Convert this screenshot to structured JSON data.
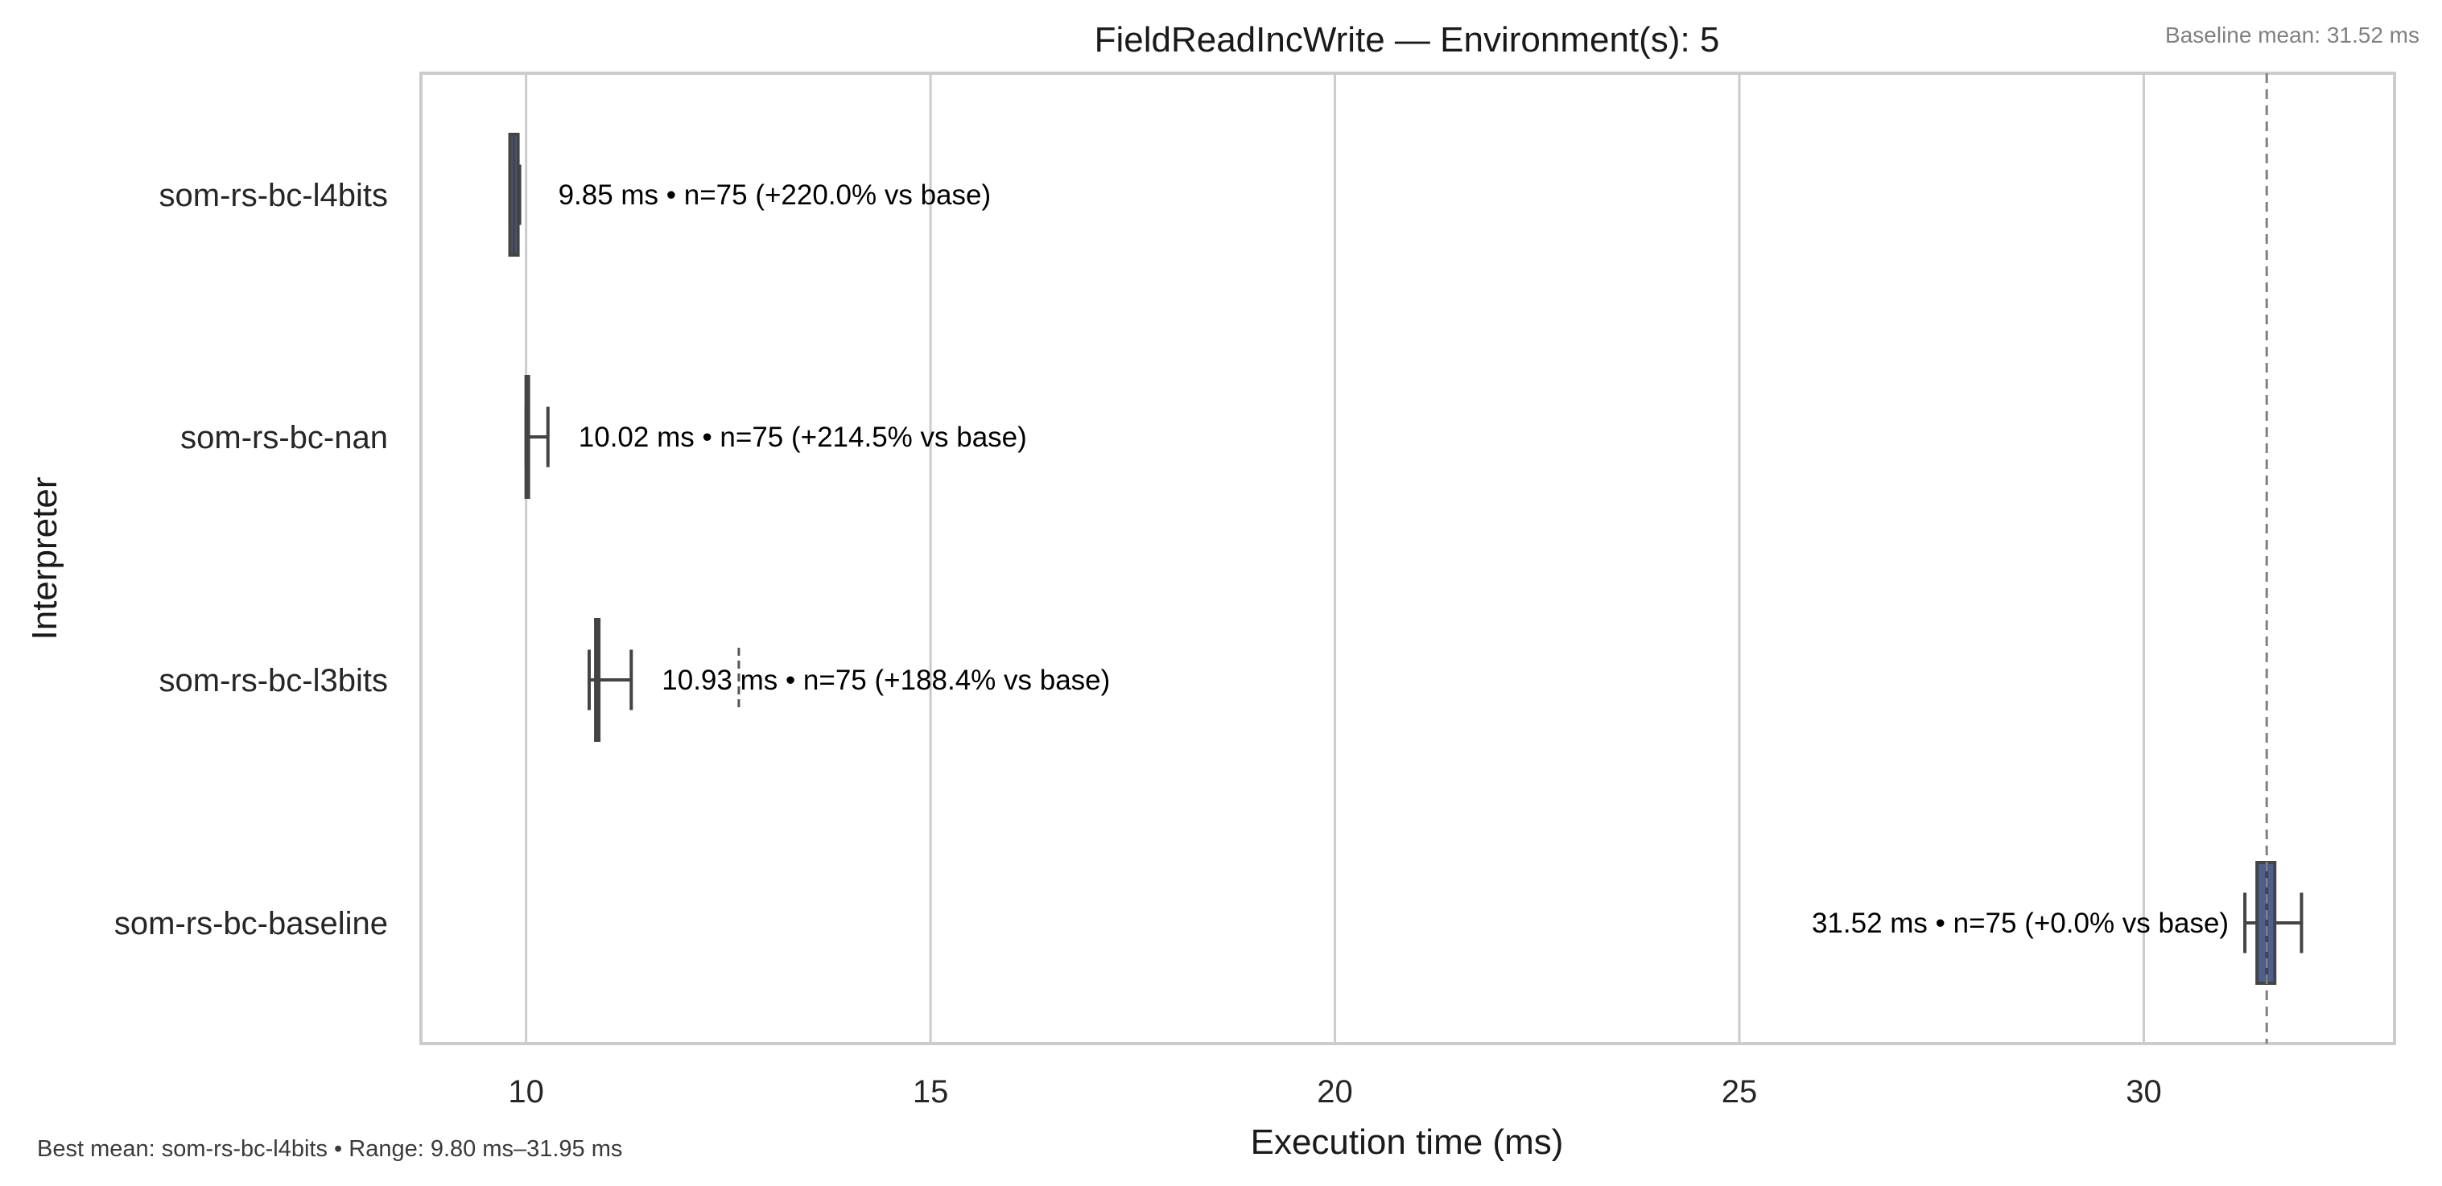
{
  "chart_data": {
    "type": "box",
    "title": "FieldReadIncWrite — Environment(s): 5",
    "xlabel": "Execution time (ms)",
    "ylabel": "Interpreter",
    "xlim": [
      8.7,
      33.1
    ],
    "xticks": [
      10,
      15,
      20,
      25,
      30
    ],
    "grid": "vertical",
    "baseline_mean": 31.52,
    "baseline_label": "Baseline mean: 31.52 ms",
    "footer": "Best mean: som-rs-bc-l4bits • Range: 9.80 ms–31.95 ms",
    "series": [
      {
        "name": "som-rs-bc-l4bits",
        "whisker_low": 9.8,
        "q1": 9.8,
        "median": 9.85,
        "q3": 9.9,
        "whisker_high": 9.92,
        "outliers": [],
        "label": "9.85 ms • n=75 (+220.0% vs base)"
      },
      {
        "name": "som-rs-bc-nan",
        "whisker_low": 10.0,
        "q1": 10.0,
        "median": 10.01,
        "q3": 10.02,
        "whisker_high": 10.27,
        "outliers": [],
        "label": "10.02 ms • n=75 (+214.5% vs base)"
      },
      {
        "name": "som-rs-bc-l3bits",
        "whisker_low": 10.78,
        "q1": 10.86,
        "median": 10.88,
        "q3": 10.9,
        "whisker_high": 11.3,
        "outliers": [
          12.63
        ],
        "label": "10.93 ms • n=75 (+188.4% vs base)"
      },
      {
        "name": "som-rs-bc-baseline",
        "whisker_low": 31.25,
        "q1": 31.4,
        "median": 31.52,
        "q3": 31.62,
        "whisker_high": 31.95,
        "outliers": [],
        "label": "31.52 ms • n=75 (+0.0% vs base)"
      }
    ],
    "colors": {
      "box": "#4c5f8f",
      "line": "#444444",
      "grid": "#cccccc",
      "frame": "#cccccc",
      "baseline": "#808080"
    }
  }
}
